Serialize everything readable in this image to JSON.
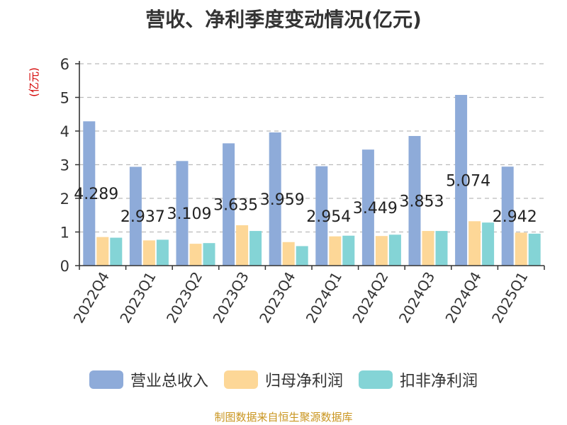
{
  "chart_data": {
    "type": "bar",
    "title": "营收、净利季度变动情况(亿元)",
    "ylabel": "(亿元)",
    "xlabel": "",
    "ylim": [
      0,
      6
    ],
    "yticks": [
      0,
      1,
      2,
      3,
      4,
      5,
      6
    ],
    "grid": true,
    "legend_position": "bottom",
    "categories": [
      "2022Q4",
      "2023Q1",
      "2023Q2",
      "2023Q3",
      "2023Q4",
      "2024Q1",
      "2024Q2",
      "2024Q3",
      "2024Q4",
      "2025Q1"
    ],
    "series": [
      {
        "name": "营业总收入",
        "color": "#8eabd9",
        "values": [
          4.289,
          2.937,
          3.109,
          3.635,
          3.959,
          2.954,
          3.449,
          3.853,
          5.074,
          2.942
        ],
        "labels": [
          "4.289",
          "2.937",
          "3.109",
          "3.635",
          "3.959",
          "2.954",
          "3.449",
          "3.853",
          "5.074",
          "2.942"
        ]
      },
      {
        "name": "归母净利润",
        "color": "#fdd797",
        "values": [
          0.85,
          0.75,
          0.65,
          1.2,
          0.7,
          0.87,
          0.88,
          1.03,
          1.32,
          0.98
        ]
      },
      {
        "name": "扣非净利润",
        "color": "#84d4d6",
        "values": [
          0.83,
          0.77,
          0.67,
          1.03,
          0.58,
          0.89,
          0.92,
          1.03,
          1.28,
          0.95
        ]
      }
    ]
  },
  "source": "制图数据来自恒生聚源数据库"
}
